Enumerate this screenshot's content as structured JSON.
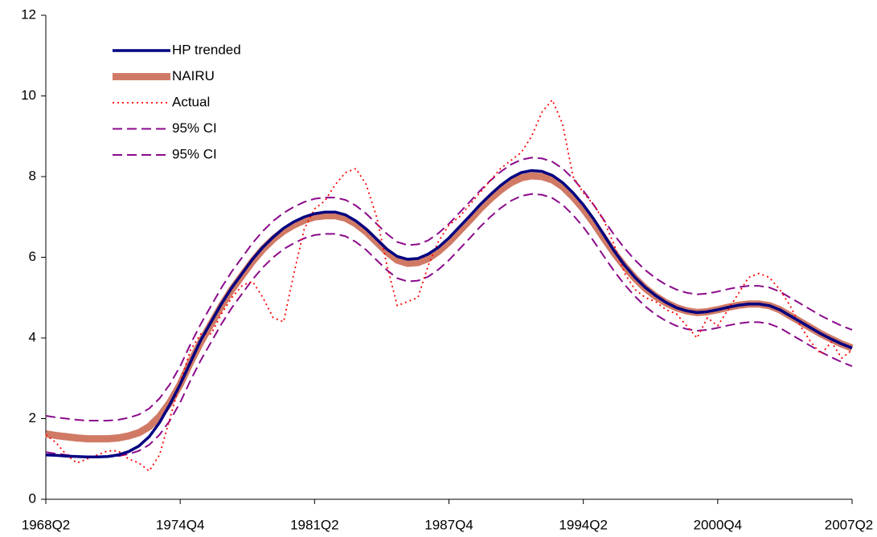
{
  "chart_data": {
    "type": "line",
    "categories": [
      "1968Q2",
      null,
      null,
      null,
      null,
      null,
      null,
      null,
      null,
      null,
      null,
      null,
      null,
      "1974Q4",
      null,
      null,
      null,
      null,
      null,
      null,
      null,
      null,
      null,
      null,
      null,
      null,
      "1981Q2",
      null,
      null,
      null,
      null,
      null,
      null,
      null,
      null,
      null,
      null,
      null,
      null,
      "1987Q4",
      null,
      null,
      null,
      null,
      null,
      null,
      null,
      null,
      null,
      null,
      null,
      null,
      "1994Q2",
      null,
      null,
      null,
      null,
      null,
      null,
      null,
      null,
      null,
      null,
      null,
      null,
      "2000Q4",
      null,
      null,
      null,
      null,
      null,
      null,
      null,
      null,
      null,
      null,
      null,
      null,
      "2007Q2"
    ],
    "ylim": [
      0,
      12
    ],
    "yticks": [
      0,
      2,
      4,
      6,
      8,
      10,
      12
    ],
    "legend": "top-left",
    "series": [
      {
        "name": "HP trended",
        "color": "#000080",
        "line_style": "solid",
        "width": 3.5,
        "values": [
          1.1,
          1.09,
          1.07,
          1.06,
          1.05,
          1.05,
          1.06,
          1.1,
          1.18,
          1.32,
          1.55,
          1.9,
          2.35,
          2.85,
          3.4,
          3.95,
          4.4,
          4.85,
          5.25,
          5.6,
          5.95,
          6.25,
          6.5,
          6.72,
          6.88,
          7.0,
          7.08,
          7.12,
          7.12,
          7.05,
          6.9,
          6.7,
          6.45,
          6.2,
          6.02,
          5.95,
          5.97,
          6.08,
          6.25,
          6.48,
          6.75,
          7.02,
          7.3,
          7.55,
          7.78,
          7.97,
          8.1,
          8.15,
          8.13,
          8.03,
          7.85,
          7.6,
          7.3,
          6.95,
          6.55,
          6.15,
          5.8,
          5.5,
          5.25,
          5.05,
          4.88,
          4.75,
          4.67,
          4.63,
          4.65,
          4.7,
          4.76,
          4.81,
          4.84,
          4.84,
          4.8,
          4.7,
          4.55,
          4.4,
          4.25,
          4.1,
          3.97,
          3.85,
          3.75
        ]
      },
      {
        "name": "NAIRU",
        "color": "#d07a66",
        "line_style": "textured",
        "width": 9,
        "values": [
          1.62,
          1.58,
          1.55,
          1.52,
          1.5,
          1.5,
          1.5,
          1.52,
          1.57,
          1.65,
          1.8,
          2.05,
          2.4,
          2.85,
          3.4,
          3.9,
          4.35,
          4.8,
          5.2,
          5.55,
          5.9,
          6.2,
          6.45,
          6.65,
          6.8,
          6.92,
          7.0,
          7.03,
          7.03,
          6.97,
          6.83,
          6.63,
          6.38,
          6.13,
          5.93,
          5.85,
          5.87,
          5.97,
          6.15,
          6.38,
          6.65,
          6.92,
          7.2,
          7.45,
          7.67,
          7.85,
          7.97,
          8.02,
          8.0,
          7.92,
          7.75,
          7.5,
          7.2,
          6.85,
          6.47,
          6.1,
          5.77,
          5.48,
          5.23,
          5.03,
          4.87,
          4.75,
          4.67,
          4.63,
          4.65,
          4.7,
          4.76,
          4.81,
          4.84,
          4.84,
          4.8,
          4.7,
          4.55,
          4.4,
          4.25,
          4.1,
          3.97,
          3.85,
          3.75
        ]
      },
      {
        "name": "Actual",
        "color": "#ff0000",
        "line_style": "dotted",
        "width": 1.8,
        "values": [
          1.6,
          1.4,
          1.1,
          0.9,
          1.0,
          1.1,
          1.2,
          1.2,
          1.0,
          0.9,
          0.7,
          1.1,
          2.0,
          2.9,
          3.7,
          4.1,
          4.1,
          4.6,
          5.0,
          5.3,
          5.4,
          5.0,
          4.5,
          4.4,
          5.6,
          6.7,
          7.2,
          7.4,
          7.8,
          8.1,
          8.2,
          7.8,
          7.0,
          5.8,
          4.8,
          4.9,
          5.0,
          5.8,
          6.4,
          6.8,
          7.0,
          7.3,
          7.6,
          7.9,
          8.2,
          8.4,
          8.6,
          9.0,
          9.6,
          9.9,
          9.3,
          8.0,
          7.6,
          7.3,
          6.9,
          6.3,
          5.6,
          5.2,
          5.0,
          4.9,
          4.7,
          4.6,
          4.3,
          4.0,
          4.5,
          4.3,
          4.7,
          5.1,
          5.5,
          5.6,
          5.5,
          5.2,
          4.8,
          4.3,
          3.9,
          3.6,
          3.9,
          3.5,
          3.7
        ]
      },
      {
        "name": "95% CI",
        "color": "#8b0a8b",
        "line_style": "dashed",
        "width": 2,
        "values": [
          2.07,
          2.03,
          2.0,
          1.97,
          1.95,
          1.95,
          1.95,
          1.97,
          2.02,
          2.1,
          2.25,
          2.5,
          2.85,
          3.3,
          3.85,
          4.35,
          4.8,
          5.25,
          5.65,
          6.0,
          6.35,
          6.65,
          6.9,
          7.1,
          7.25,
          7.37,
          7.45,
          7.48,
          7.48,
          7.42,
          7.28,
          7.08,
          6.83,
          6.58,
          6.38,
          6.3,
          6.32,
          6.42,
          6.6,
          6.83,
          7.1,
          7.37,
          7.65,
          7.9,
          8.12,
          8.3,
          8.42,
          8.47,
          8.45,
          8.37,
          8.2,
          7.95,
          7.65,
          7.3,
          6.92,
          6.55,
          6.22,
          5.93,
          5.68,
          5.48,
          5.32,
          5.2,
          5.12,
          5.08,
          5.1,
          5.15,
          5.21,
          5.26,
          5.29,
          5.29,
          5.25,
          5.15,
          5.0,
          4.85,
          4.7,
          4.55,
          4.42,
          4.3,
          4.2
        ]
      },
      {
        "name": "95% CI",
        "color": "#8b0a8b",
        "line_style": "dashed",
        "width": 2,
        "values": [
          1.17,
          1.13,
          1.1,
          1.07,
          1.05,
          1.05,
          1.05,
          1.07,
          1.12,
          1.2,
          1.35,
          1.6,
          1.95,
          2.4,
          2.95,
          3.45,
          3.9,
          4.35,
          4.75,
          5.1,
          5.45,
          5.75,
          6.0,
          6.2,
          6.35,
          6.47,
          6.55,
          6.58,
          6.58,
          6.52,
          6.38,
          6.18,
          5.93,
          5.68,
          5.48,
          5.4,
          5.42,
          5.52,
          5.7,
          5.93,
          6.2,
          6.47,
          6.75,
          7.0,
          7.22,
          7.4,
          7.52,
          7.57,
          7.55,
          7.47,
          7.3,
          7.05,
          6.75,
          6.4,
          6.02,
          5.65,
          5.32,
          5.03,
          4.78,
          4.58,
          4.42,
          4.3,
          4.22,
          4.18,
          4.2,
          4.25,
          4.31,
          4.36,
          4.39,
          4.39,
          4.35,
          4.25,
          4.1,
          3.95,
          3.8,
          3.65,
          3.52,
          3.4,
          3.3
        ]
      }
    ]
  }
}
